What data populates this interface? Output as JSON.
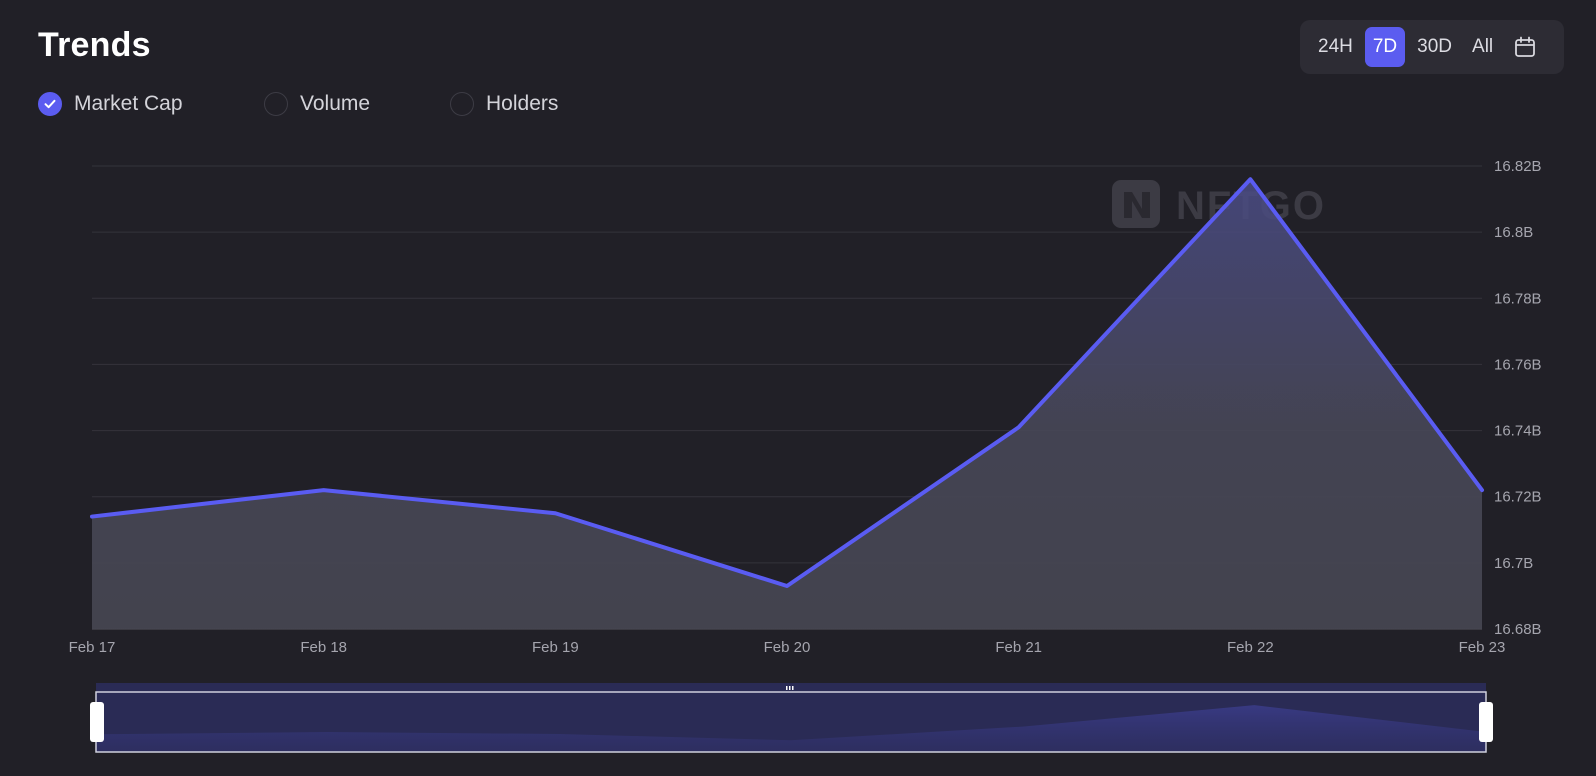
{
  "header": {
    "title": "Trends"
  },
  "time_ranges": [
    {
      "label": "24H",
      "active": false
    },
    {
      "label": "7D",
      "active": true
    },
    {
      "label": "30D",
      "active": false
    },
    {
      "label": "All",
      "active": false
    }
  ],
  "metrics": [
    {
      "label": "Market Cap",
      "checked": true
    },
    {
      "label": "Volume",
      "checked": false
    },
    {
      "label": "Holders",
      "checked": false
    }
  ],
  "watermark": "NFTGO",
  "colors": {
    "accent": "#5b5cf0",
    "background": "#212027",
    "line": "#5a5cf2"
  },
  "chart_data": {
    "type": "area",
    "x": [
      "Feb 17",
      "Feb 18",
      "Feb 19",
      "Feb 20",
      "Feb 21",
      "Feb 22",
      "Feb 23"
    ],
    "series": [
      {
        "values": [
          16.714,
          16.722,
          16.715,
          16.693,
          16.741,
          16.816,
          16.722
        ]
      }
    ],
    "ylim": [
      16.68,
      16.82
    ],
    "yticks": [
      {
        "value": 16.82,
        "label": "16.82B"
      },
      {
        "value": 16.8,
        "label": "16.8B"
      },
      {
        "value": 16.78,
        "label": "16.78B"
      },
      {
        "value": 16.76,
        "label": "16.76B"
      },
      {
        "value": 16.74,
        "label": "16.74B"
      },
      {
        "value": 16.72,
        "label": "16.72B"
      },
      {
        "value": 16.7,
        "label": "16.7B"
      },
      {
        "value": 16.68,
        "label": "16.68B"
      }
    ],
    "y_axis_position": "right",
    "grid": true,
    "legend": "none",
    "range_slider": {
      "start": 0,
      "end": 1
    }
  }
}
